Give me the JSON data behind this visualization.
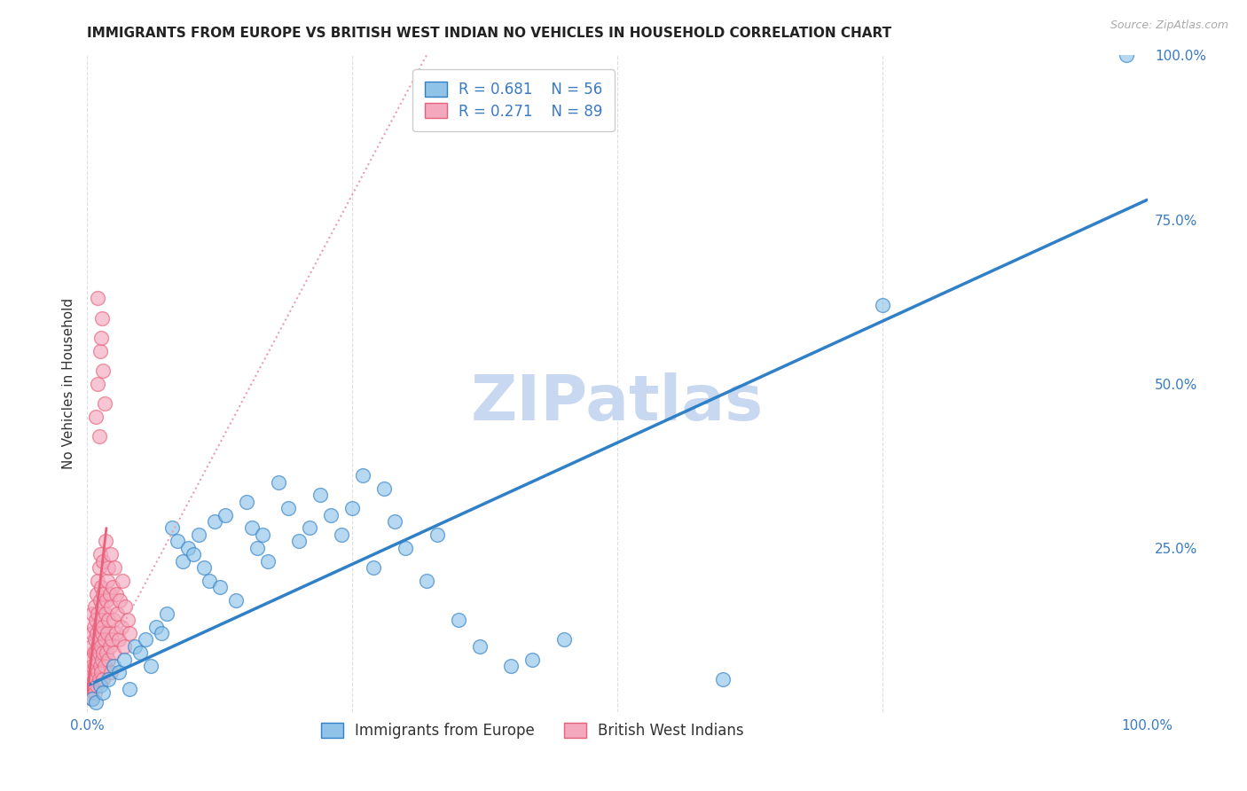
{
  "title": "IMMIGRANTS FROM EUROPE VS BRITISH WEST INDIAN NO VEHICLES IN HOUSEHOLD CORRELATION CHART",
  "source": "Source: ZipAtlas.com",
  "ylabel": "No Vehicles in Household",
  "xlim": [
    0,
    1.0
  ],
  "ylim": [
    0,
    1.0
  ],
  "xticks": [
    0.0,
    0.25,
    0.5,
    0.75,
    1.0
  ],
  "xticklabels": [
    "0.0%",
    "",
    "",
    "",
    "100.0%"
  ],
  "yticks_right": [
    0.0,
    0.25,
    0.5,
    0.75,
    1.0
  ],
  "yticklabels_right": [
    "",
    "25.0%",
    "50.0%",
    "75.0%",
    "100.0%"
  ],
  "grid_color": "#dedede",
  "background_color": "#ffffff",
  "watermark": "ZIPatlas",
  "watermark_color": "#c8d8f0",
  "legend_label1": "Immigrants from Europe",
  "legend_label2": "British West Indians",
  "legend_R1": "R = 0.681",
  "legend_N1": "N = 56",
  "legend_R2": "R = 0.271",
  "legend_N2": "N = 89",
  "color_blue": "#8fc4e8",
  "color_pink": "#f4a8be",
  "color_blue_line": "#3080c8",
  "color_pink_line": "#e8607a",
  "color_pink_trend_dot": "#e8a0b0",
  "blue_trend_x": [
    0.0,
    1.0
  ],
  "blue_trend_y": [
    0.04,
    0.78
  ],
  "pink_trend_x": [
    0.0,
    0.32
  ],
  "pink_trend_y": [
    0.03,
    1.0
  ],
  "blue_dots": [
    [
      0.005,
      0.02
    ],
    [
      0.008,
      0.015
    ],
    [
      0.012,
      0.04
    ],
    [
      0.015,
      0.03
    ],
    [
      0.02,
      0.05
    ],
    [
      0.025,
      0.07
    ],
    [
      0.03,
      0.06
    ],
    [
      0.035,
      0.08
    ],
    [
      0.04,
      0.035
    ],
    [
      0.045,
      0.1
    ],
    [
      0.05,
      0.09
    ],
    [
      0.055,
      0.11
    ],
    [
      0.06,
      0.07
    ],
    [
      0.065,
      0.13
    ],
    [
      0.07,
      0.12
    ],
    [
      0.075,
      0.15
    ],
    [
      0.08,
      0.28
    ],
    [
      0.085,
      0.26
    ],
    [
      0.09,
      0.23
    ],
    [
      0.095,
      0.25
    ],
    [
      0.1,
      0.24
    ],
    [
      0.105,
      0.27
    ],
    [
      0.11,
      0.22
    ],
    [
      0.115,
      0.2
    ],
    [
      0.12,
      0.29
    ],
    [
      0.125,
      0.19
    ],
    [
      0.13,
      0.3
    ],
    [
      0.14,
      0.17
    ],
    [
      0.15,
      0.32
    ],
    [
      0.155,
      0.28
    ],
    [
      0.16,
      0.25
    ],
    [
      0.165,
      0.27
    ],
    [
      0.17,
      0.23
    ],
    [
      0.18,
      0.35
    ],
    [
      0.19,
      0.31
    ],
    [
      0.2,
      0.26
    ],
    [
      0.21,
      0.28
    ],
    [
      0.22,
      0.33
    ],
    [
      0.23,
      0.3
    ],
    [
      0.24,
      0.27
    ],
    [
      0.25,
      0.31
    ],
    [
      0.26,
      0.36
    ],
    [
      0.27,
      0.22
    ],
    [
      0.28,
      0.34
    ],
    [
      0.29,
      0.29
    ],
    [
      0.3,
      0.25
    ],
    [
      0.32,
      0.2
    ],
    [
      0.33,
      0.27
    ],
    [
      0.35,
      0.14
    ],
    [
      0.37,
      0.1
    ],
    [
      0.4,
      0.07
    ],
    [
      0.42,
      0.08
    ],
    [
      0.45,
      0.11
    ],
    [
      0.6,
      0.05
    ],
    [
      0.75,
      0.62
    ],
    [
      0.98,
      1.0
    ]
  ],
  "pink_dots": [
    [
      0.002,
      0.03
    ],
    [
      0.003,
      0.05
    ],
    [
      0.003,
      0.08
    ],
    [
      0.004,
      0.04
    ],
    [
      0.004,
      0.06
    ],
    [
      0.004,
      0.1
    ],
    [
      0.005,
      0.02
    ],
    [
      0.005,
      0.07
    ],
    [
      0.005,
      0.12
    ],
    [
      0.005,
      0.15
    ],
    [
      0.006,
      0.04
    ],
    [
      0.006,
      0.09
    ],
    [
      0.006,
      0.13
    ],
    [
      0.007,
      0.03
    ],
    [
      0.007,
      0.07
    ],
    [
      0.007,
      0.11
    ],
    [
      0.007,
      0.16
    ],
    [
      0.008,
      0.05
    ],
    [
      0.008,
      0.09
    ],
    [
      0.008,
      0.14
    ],
    [
      0.009,
      0.04
    ],
    [
      0.009,
      0.08
    ],
    [
      0.009,
      0.12
    ],
    [
      0.009,
      0.18
    ],
    [
      0.01,
      0.06
    ],
    [
      0.01,
      0.1
    ],
    [
      0.01,
      0.15
    ],
    [
      0.01,
      0.2
    ],
    [
      0.011,
      0.05
    ],
    [
      0.011,
      0.09
    ],
    [
      0.011,
      0.13
    ],
    [
      0.011,
      0.22
    ],
    [
      0.012,
      0.07
    ],
    [
      0.012,
      0.11
    ],
    [
      0.012,
      0.17
    ],
    [
      0.012,
      0.24
    ],
    [
      0.013,
      0.06
    ],
    [
      0.013,
      0.1
    ],
    [
      0.013,
      0.14
    ],
    [
      0.013,
      0.19
    ],
    [
      0.014,
      0.08
    ],
    [
      0.014,
      0.12
    ],
    [
      0.014,
      0.16
    ],
    [
      0.015,
      0.05
    ],
    [
      0.015,
      0.09
    ],
    [
      0.015,
      0.13
    ],
    [
      0.015,
      0.18
    ],
    [
      0.015,
      0.23
    ],
    [
      0.016,
      0.07
    ],
    [
      0.016,
      0.11
    ],
    [
      0.017,
      0.15
    ],
    [
      0.017,
      0.26
    ],
    [
      0.018,
      0.09
    ],
    [
      0.018,
      0.17
    ],
    [
      0.019,
      0.12
    ],
    [
      0.019,
      0.2
    ],
    [
      0.02,
      0.08
    ],
    [
      0.02,
      0.14
    ],
    [
      0.02,
      0.22
    ],
    [
      0.021,
      0.1
    ],
    [
      0.021,
      0.18
    ],
    [
      0.022,
      0.06
    ],
    [
      0.022,
      0.16
    ],
    [
      0.022,
      0.24
    ],
    [
      0.023,
      0.11
    ],
    [
      0.024,
      0.19
    ],
    [
      0.025,
      0.09
    ],
    [
      0.025,
      0.14
    ],
    [
      0.026,
      0.22
    ],
    [
      0.027,
      0.12
    ],
    [
      0.027,
      0.18
    ],
    [
      0.028,
      0.15
    ],
    [
      0.03,
      0.11
    ],
    [
      0.031,
      0.17
    ],
    [
      0.032,
      0.13
    ],
    [
      0.033,
      0.2
    ],
    [
      0.035,
      0.1
    ],
    [
      0.036,
      0.16
    ],
    [
      0.038,
      0.14
    ],
    [
      0.04,
      0.12
    ],
    [
      0.012,
      0.55
    ],
    [
      0.014,
      0.6
    ],
    [
      0.01,
      0.5
    ],
    [
      0.008,
      0.45
    ],
    [
      0.015,
      0.52
    ],
    [
      0.013,
      0.57
    ],
    [
      0.016,
      0.47
    ],
    [
      0.011,
      0.42
    ],
    [
      0.01,
      0.63
    ]
  ],
  "title_fontsize": 11,
  "axis_label_fontsize": 11,
  "tick_fontsize": 11,
  "legend_fontsize": 12,
  "watermark_fontsize": 52
}
